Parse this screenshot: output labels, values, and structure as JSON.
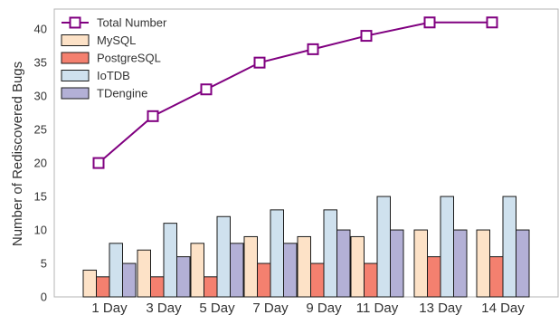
{
  "chart_data": {
    "type": "bar",
    "categories": [
      "1 Day",
      "3 Day",
      "5 Day",
      "7 Day",
      "9 Day",
      "11 Day",
      "13 Day",
      "14 Day"
    ],
    "series": [
      {
        "name": "MySQL",
        "values": [
          4,
          7,
          8,
          9,
          9,
          9,
          10,
          10
        ],
        "color": "#fde2c7"
      },
      {
        "name": "PostgreSQL",
        "values": [
          3,
          3,
          3,
          5,
          5,
          5,
          6,
          6
        ],
        "color": "#f4806f"
      },
      {
        "name": "IoTDB",
        "values": [
          8,
          11,
          12,
          13,
          13,
          15,
          15,
          15
        ],
        "color": "#cfe1ee"
      },
      {
        "name": "TDengine",
        "values": [
          5,
          6,
          8,
          8,
          10,
          10,
          10,
          10
        ],
        "color": "#b3b0d6"
      }
    ],
    "line_series": {
      "name": "Total Number",
      "values": [
        20,
        27,
        31,
        35,
        37,
        39,
        41,
        41
      ],
      "color": "#800080",
      "marker": "square"
    },
    "title": "",
    "xlabel": "",
    "ylabel": "Number of Rediscovered Bugs",
    "ylim": [
      0,
      43
    ],
    "yticks": [
      0,
      5,
      10,
      15,
      20,
      25,
      30,
      35,
      40
    ],
    "grid": false,
    "legend_position": "top-left"
  }
}
